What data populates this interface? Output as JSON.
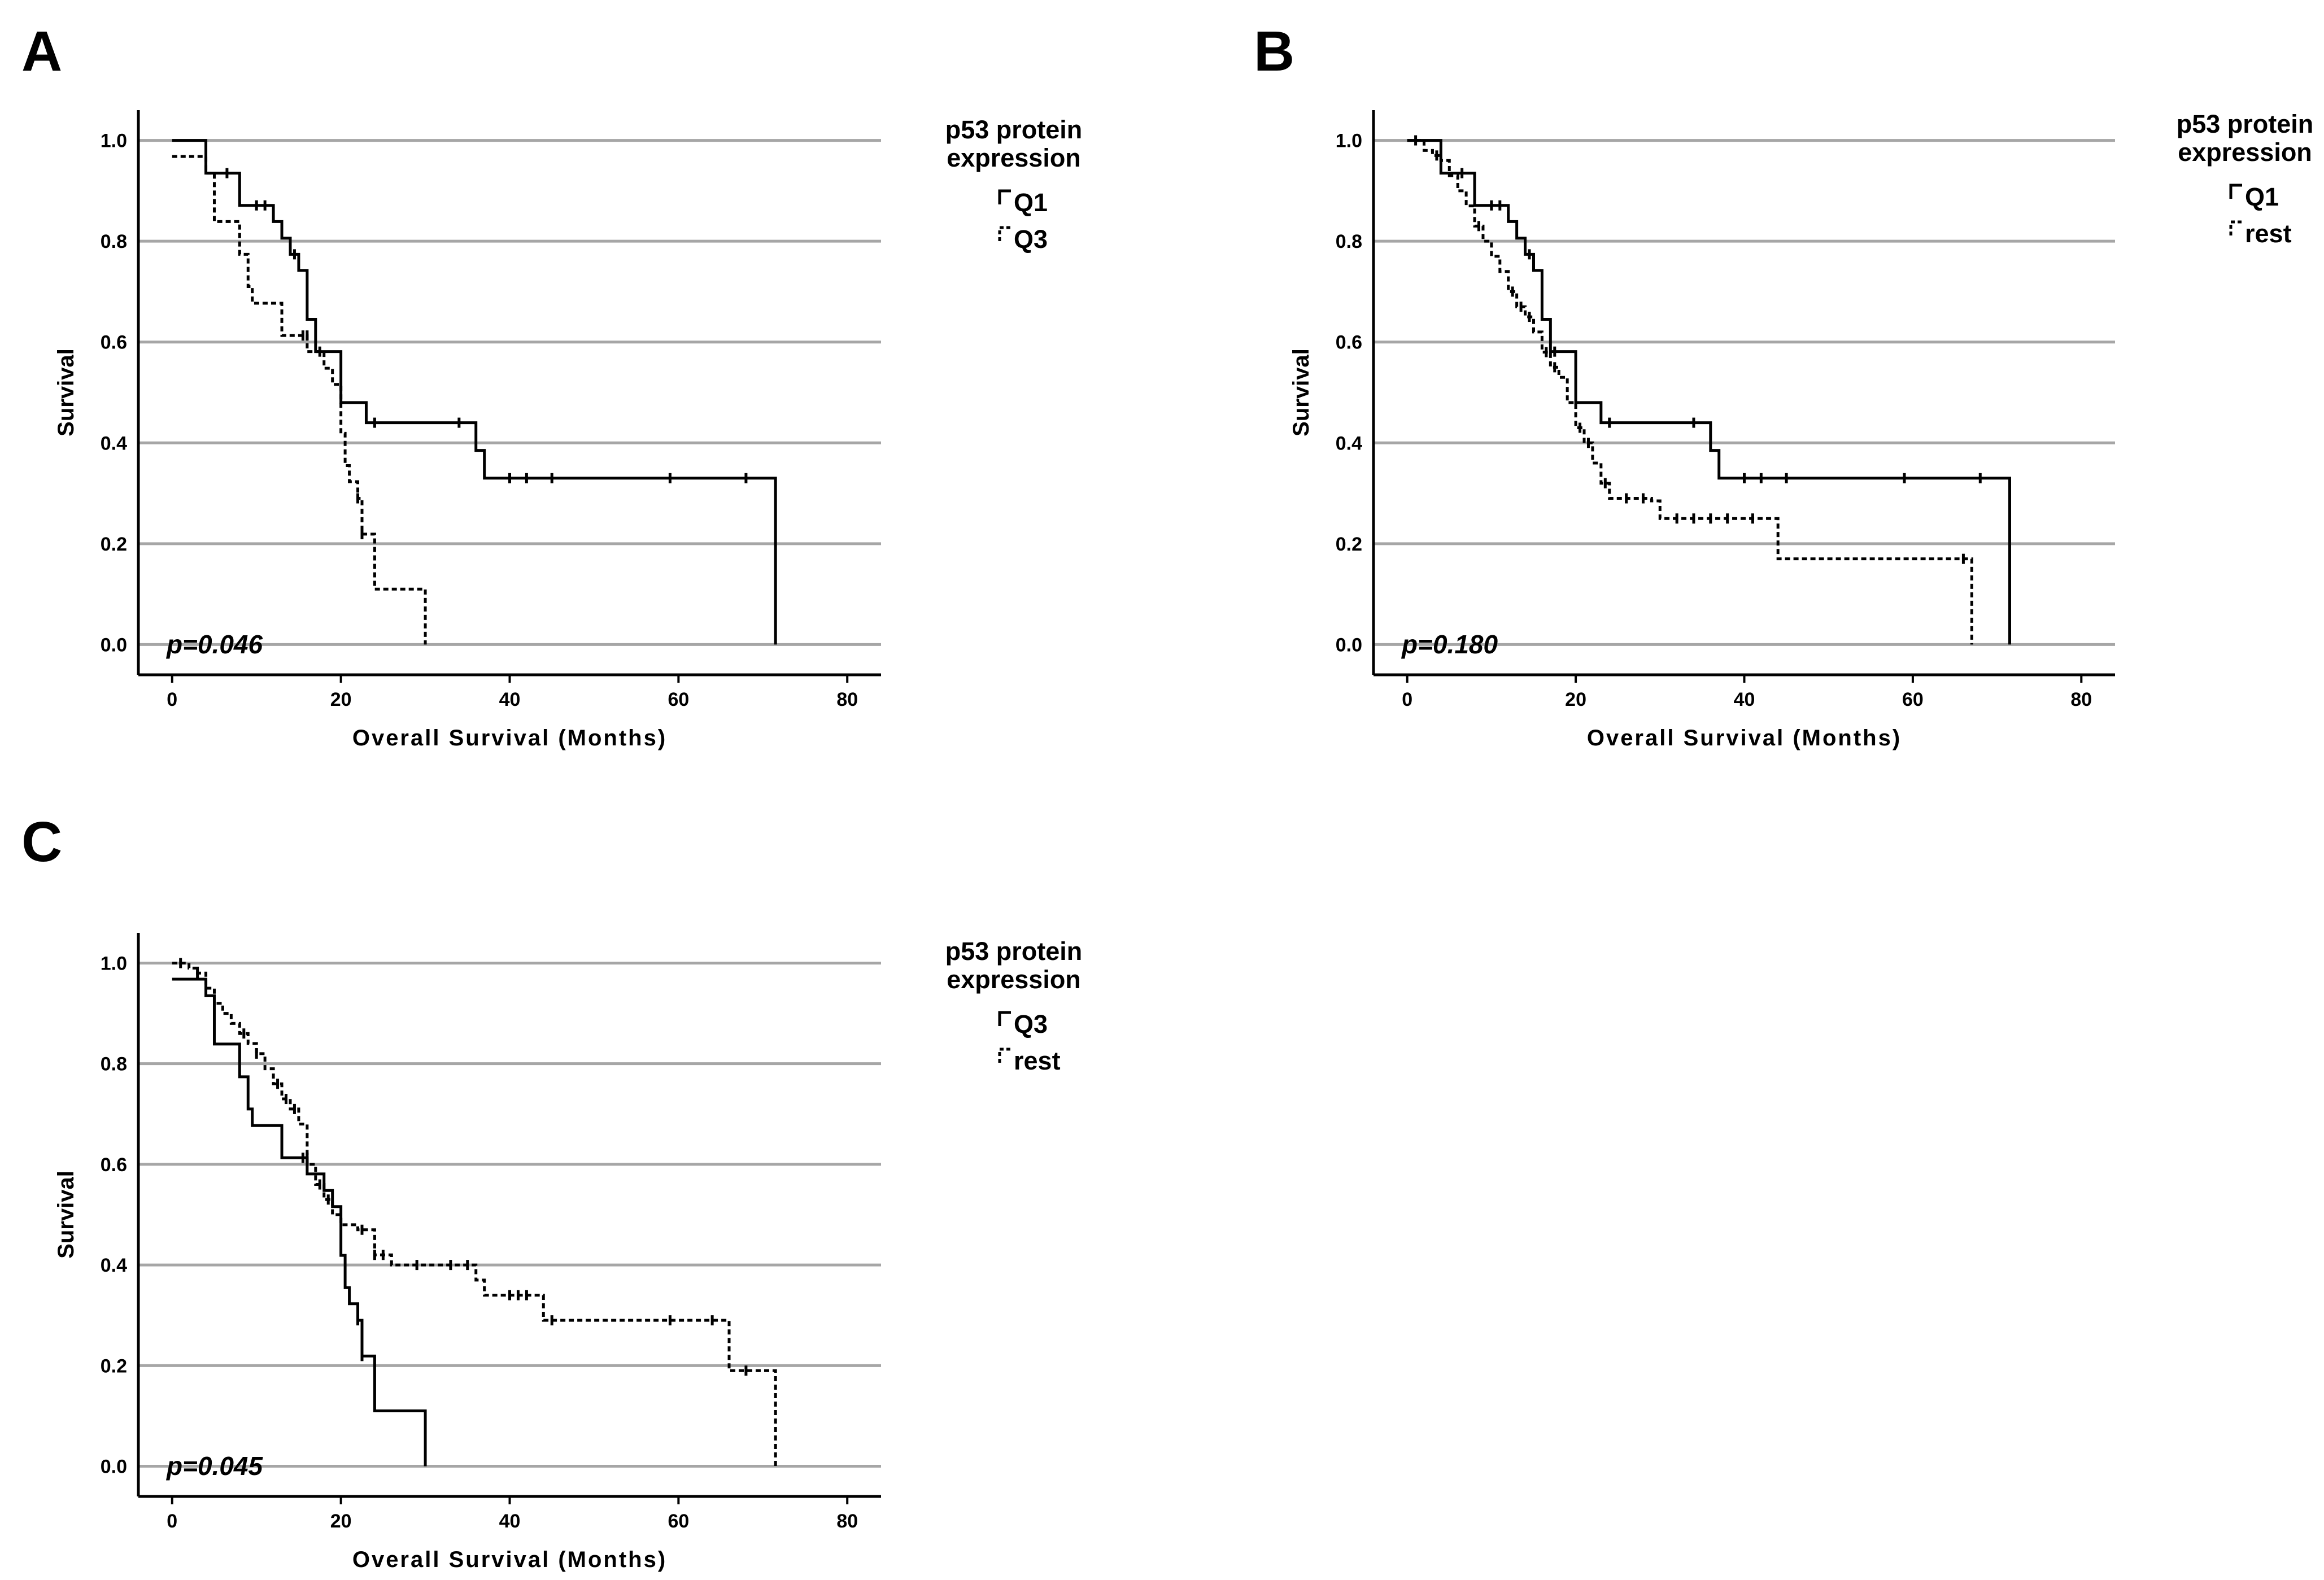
{
  "chart_data": [
    {
      "type": "line",
      "panel_label": "A",
      "xlabel": "Overall Survival (Months)",
      "ylabel": "Survival",
      "xlim": [
        -4,
        84
      ],
      "ylim": [
        -0.06,
        1.06
      ],
      "xticks": [
        0,
        20,
        40,
        60,
        80
      ],
      "yticks": [
        0.0,
        0.2,
        0.4,
        0.6,
        0.8,
        1.0
      ],
      "grid": "horizontal",
      "legend_title": "p53 protein expression",
      "legend_placement": "right",
      "annotation": "p=0.046",
      "series": [
        {
          "name": "Q1",
          "dash": "solid",
          "steps": [
            [
              0,
              1.0
            ],
            [
              4,
              0.935
            ],
            [
              8,
              0.871
            ],
            [
              12,
              0.839
            ],
            [
              13,
              0.806
            ],
            [
              14,
              0.774
            ],
            [
              15,
              0.742
            ],
            [
              16,
              0.645
            ],
            [
              17,
              0.581
            ],
            [
              20,
              0.48
            ],
            [
              23,
              0.44
            ],
            [
              36,
              0.385
            ],
            [
              37,
              0.33
            ],
            [
              71.5,
              0.0
            ]
          ],
          "end": 71.5,
          "censors": [
            [
              6.5,
              0.935
            ],
            [
              10,
              0.871
            ],
            [
              11,
              0.871
            ],
            [
              14.5,
              0.774
            ],
            [
              17.5,
              0.581
            ],
            [
              24,
              0.44
            ],
            [
              34,
              0.44
            ],
            [
              40,
              0.33
            ],
            [
              42,
              0.33
            ],
            [
              45,
              0.33
            ],
            [
              59,
              0.33
            ],
            [
              68,
              0.33
            ]
          ]
        },
        {
          "name": "Q3",
          "dash": "dashed",
          "steps": [
            [
              0,
              0.968
            ],
            [
              4,
              0.935
            ],
            [
              5,
              0.839
            ],
            [
              8,
              0.774
            ],
            [
              9,
              0.71
            ],
            [
              9.5,
              0.677
            ],
            [
              13,
              0.613
            ],
            [
              16,
              0.581
            ],
            [
              18,
              0.548
            ],
            [
              19,
              0.516
            ],
            [
              20,
              0.419
            ],
            [
              20.5,
              0.355
            ],
            [
              21,
              0.323
            ],
            [
              22,
              0.29
            ],
            [
              22.5,
              0.219
            ],
            [
              24,
              0.11
            ],
            [
              30,
              0.0
            ]
          ],
          "end": 30,
          "censors": [
            [
              15.5,
              0.613
            ],
            [
              16,
              0.613
            ],
            [
              22,
              0.29
            ],
            [
              22.5,
              0.219
            ]
          ]
        }
      ]
    },
    {
      "type": "line",
      "panel_label": "B",
      "xlabel": "Overall Survival (Months)",
      "ylabel": "Survival",
      "xlim": [
        -4,
        84
      ],
      "ylim": [
        -0.06,
        1.06
      ],
      "xticks": [
        0,
        20,
        40,
        60,
        80
      ],
      "yticks": [
        0.0,
        0.2,
        0.4,
        0.6,
        0.8,
        1.0
      ],
      "grid": "horizontal",
      "legend_title": "p53 protein expression",
      "legend_placement": "right",
      "annotation": "p=0.180",
      "series": [
        {
          "name": "Q1",
          "dash": "solid",
          "steps": [
            [
              0,
              1.0
            ],
            [
              4,
              0.935
            ],
            [
              8,
              0.871
            ],
            [
              12,
              0.839
            ],
            [
              13,
              0.806
            ],
            [
              14,
              0.774
            ],
            [
              15,
              0.742
            ],
            [
              16,
              0.645
            ],
            [
              17,
              0.581
            ],
            [
              20,
              0.48
            ],
            [
              23,
              0.44
            ],
            [
              36,
              0.385
            ],
            [
              37,
              0.33
            ],
            [
              71.5,
              0.0
            ]
          ],
          "end": 71.5,
          "censors": [
            [
              6.5,
              0.935
            ],
            [
              10,
              0.871
            ],
            [
              11,
              0.871
            ],
            [
              14.5,
              0.774
            ],
            [
              17.5,
              0.581
            ],
            [
              24,
              0.44
            ],
            [
              34,
              0.44
            ],
            [
              40,
              0.33
            ],
            [
              42,
              0.33
            ],
            [
              45,
              0.33
            ],
            [
              59,
              0.33
            ],
            [
              68,
              0.33
            ]
          ]
        },
        {
          "name": "rest",
          "dash": "dashed",
          "steps": [
            [
              0,
              1.0
            ],
            [
              2,
              0.98
            ],
            [
              3,
              0.97
            ],
            [
              4,
              0.96
            ],
            [
              5,
              0.93
            ],
            [
              6,
              0.9
            ],
            [
              7,
              0.87
            ],
            [
              8,
              0.83
            ],
            [
              9,
              0.8
            ],
            [
              10,
              0.77
            ],
            [
              11,
              0.74
            ],
            [
              12,
              0.7
            ],
            [
              13,
              0.67
            ],
            [
              14,
              0.65
            ],
            [
              15,
              0.62
            ],
            [
              16,
              0.58
            ],
            [
              17,
              0.55
            ],
            [
              18,
              0.53
            ],
            [
              19,
              0.48
            ],
            [
              20,
              0.43
            ],
            [
              21,
              0.4
            ],
            [
              22,
              0.36
            ],
            [
              23,
              0.32
            ],
            [
              24,
              0.29
            ],
            [
              29,
              0.285
            ],
            [
              30,
              0.25
            ],
            [
              44,
              0.17
            ],
            [
              67,
              0.0
            ]
          ],
          "end": 67,
          "censors": [
            [
              1,
              1.0
            ],
            [
              3.5,
              0.97
            ],
            [
              8.5,
              0.83
            ],
            [
              12.5,
              0.7
            ],
            [
              13.5,
              0.67
            ],
            [
              14.5,
              0.65
            ],
            [
              16.5,
              0.58
            ],
            [
              17.5,
              0.55
            ],
            [
              20.5,
              0.43
            ],
            [
              21.5,
              0.4
            ],
            [
              23.5,
              0.32
            ],
            [
              26,
              0.29
            ],
            [
              28,
              0.29
            ],
            [
              32,
              0.25
            ],
            [
              34,
              0.25
            ],
            [
              36,
              0.25
            ],
            [
              38,
              0.25
            ],
            [
              41,
              0.25
            ],
            [
              66,
              0.17
            ]
          ]
        }
      ]
    },
    {
      "type": "line",
      "panel_label": "C",
      "xlabel": "Overall Survival (Months)",
      "ylabel": "Survival",
      "xlim": [
        -4,
        84
      ],
      "ylim": [
        -0.06,
        1.06
      ],
      "xticks": [
        0,
        20,
        40,
        60,
        80
      ],
      "yticks": [
        0.0,
        0.2,
        0.4,
        0.6,
        0.8,
        1.0
      ],
      "grid": "horizontal",
      "legend_title": "p53 protein expression",
      "legend_placement": "right",
      "annotation": "p=0.045",
      "series": [
        {
          "name": "Q3",
          "dash": "solid",
          "steps": [
            [
              0,
              0.968
            ],
            [
              4,
              0.935
            ],
            [
              5,
              0.839
            ],
            [
              8,
              0.774
            ],
            [
              9,
              0.71
            ],
            [
              9.5,
              0.677
            ],
            [
              13,
              0.613
            ],
            [
              16,
              0.581
            ],
            [
              18,
              0.548
            ],
            [
              19,
              0.516
            ],
            [
              20,
              0.419
            ],
            [
              20.5,
              0.355
            ],
            [
              21,
              0.323
            ],
            [
              22,
              0.29
            ],
            [
              22.5,
              0.219
            ],
            [
              24,
              0.11
            ],
            [
              30,
              0.0
            ]
          ],
          "end": 30,
          "censors": [
            [
              15.5,
              0.613
            ],
            [
              16,
              0.613
            ],
            [
              22,
              0.29
            ],
            [
              22.5,
              0.219
            ]
          ]
        },
        {
          "name": "rest",
          "dash": "dashed",
          "steps": [
            [
              0,
              1.0
            ],
            [
              2,
              0.99
            ],
            [
              3,
              0.98
            ],
            [
              4,
              0.95
            ],
            [
              5,
              0.92
            ],
            [
              6,
              0.9
            ],
            [
              7,
              0.88
            ],
            [
              8,
              0.86
            ],
            [
              9,
              0.84
            ],
            [
              10,
              0.82
            ],
            [
              11,
              0.79
            ],
            [
              12,
              0.76
            ],
            [
              13,
              0.73
            ],
            [
              14,
              0.71
            ],
            [
              15,
              0.68
            ],
            [
              16,
              0.6
            ],
            [
              17,
              0.56
            ],
            [
              18,
              0.53
            ],
            [
              19,
              0.5
            ],
            [
              20,
              0.48
            ],
            [
              22,
              0.47
            ],
            [
              24,
              0.42
            ],
            [
              26,
              0.4
            ],
            [
              36,
              0.37
            ],
            [
              37,
              0.34
            ],
            [
              44,
              0.29
            ],
            [
              66,
              0.19
            ],
            [
              71.5,
              0.0
            ]
          ],
          "end": 71.5,
          "censors": [
            [
              1,
              1.0
            ],
            [
              3,
              0.98
            ],
            [
              8.5,
              0.86
            ],
            [
              10,
              0.82
            ],
            [
              12.5,
              0.76
            ],
            [
              13.5,
              0.73
            ],
            [
              14.5,
              0.71
            ],
            [
              17.5,
              0.56
            ],
            [
              18.5,
              0.53
            ],
            [
              22.5,
              0.47
            ],
            [
              24,
              0.42
            ],
            [
              25,
              0.42
            ],
            [
              29,
              0.4
            ],
            [
              33,
              0.4
            ],
            [
              35,
              0.4
            ],
            [
              40,
              0.34
            ],
            [
              41,
              0.34
            ],
            [
              42,
              0.34
            ],
            [
              45,
              0.29
            ],
            [
              59,
              0.29
            ],
            [
              64,
              0.29
            ],
            [
              68,
              0.19
            ]
          ]
        }
      ]
    }
  ]
}
